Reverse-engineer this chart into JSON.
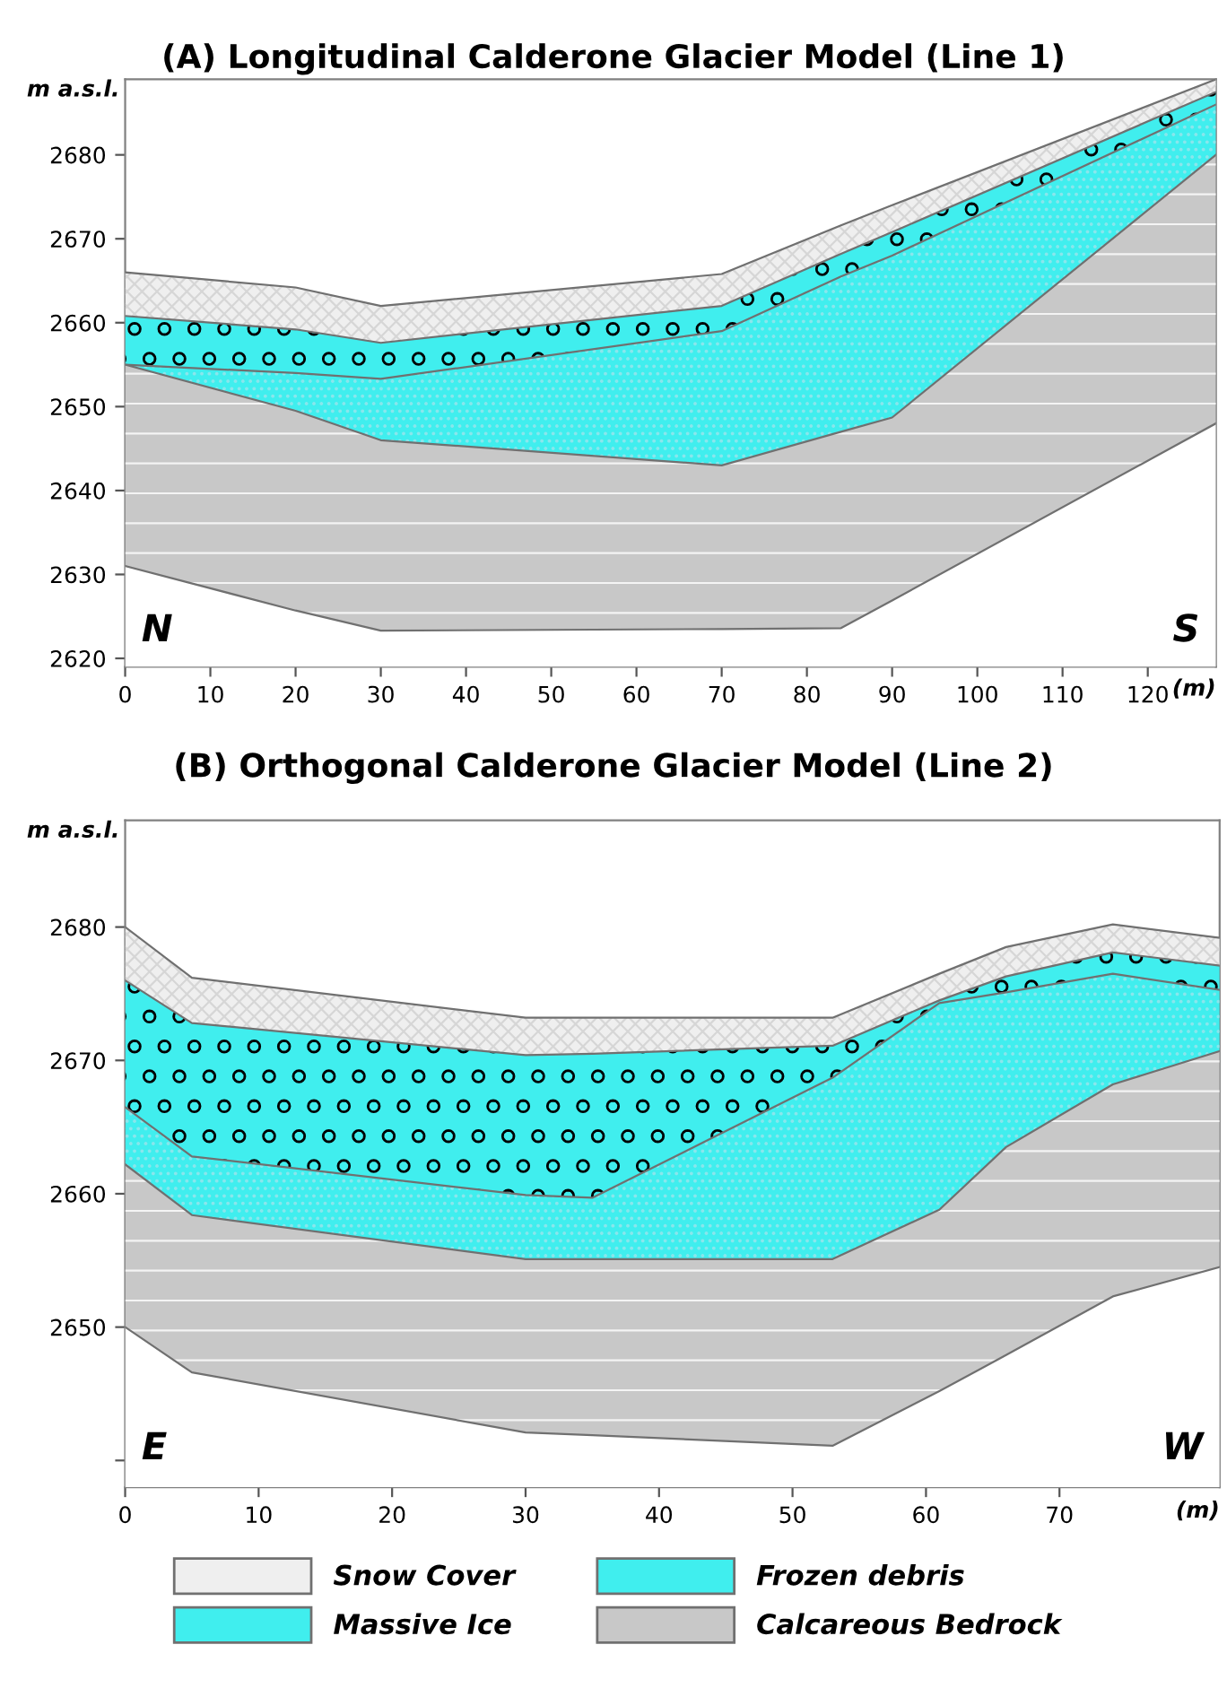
{
  "chart_data": [
    {
      "type": "area",
      "title": "(A) Longitudinal Calderone Glacier Model (Line 1)",
      "xlabel": "(m)",
      "ylabel": "m a.s.l.",
      "x": [
        0,
        20,
        30,
        70,
        84,
        90,
        128
      ],
      "series": [
        {
          "color": "#ffffff",
          "values": [
            2631,
            2625.7,
            2623.3,
            2623.5,
            2623.6,
            2626.9,
            2648
          ]
        },
        {
          "color": "#c8c8c8",
          "values": [
            2655,
            2649.5,
            2646,
            2643,
            2647,
            2648.7,
            2680
          ]
        },
        {
          "color": "#40eeee",
          "values": [
            2655,
            2654,
            2653.3,
            2659,
            2665.5,
            2668,
            2686
          ]
        },
        {
          "color": "#40eeee",
          "values": [
            2660.8,
            2659.2,
            2657.6,
            2662,
            2668.2,
            2670.8,
            2687.5
          ]
        },
        {
          "color": "#efefef",
          "values": [
            2666,
            2664.2,
            2662,
            2665.8,
            2671.6,
            2674,
            2689
          ]
        }
      ],
      "xlim": [
        0,
        128
      ],
      "ylim": [
        2619,
        2689
      ],
      "xticks": [
        0,
        10,
        20,
        30,
        40,
        50,
        60,
        70,
        80,
        90,
        100,
        110,
        120
      ],
      "yticks": [
        2620,
        2630,
        2640,
        2650,
        2660,
        2670,
        2680
      ],
      "annotations": [
        "N",
        "S"
      ]
    },
    {
      "type": "area",
      "title": "(B) Orthogonal Calderone Glacier Model (Line 2)",
      "xlabel": "(m)",
      "ylabel": "m a.s.l.",
      "x": [
        0,
        5,
        30,
        35,
        53,
        61,
        66,
        74,
        82
      ],
      "series": [
        {
          "color": "#ffffff",
          "values": [
            2650,
            2646.6,
            2642.1,
            2641.9,
            2641.1,
            2645.2,
            2647.9,
            2652.3,
            2654.5
          ]
        },
        {
          "name": "Calcareous Bedrock",
          "color": "#c8c8c8",
          "values": [
            2662.2,
            2658.4,
            2655.1,
            2655.1,
            2655.1,
            2658.8,
            2663.5,
            2668.2,
            2670.7
          ]
        },
        {
          "name": "Massive Ice",
          "color": "#40eeee",
          "values": [
            2666.5,
            2662.8,
            2659.9,
            2659.7,
            2668.7,
            2674.3,
            2675.1,
            2676.5,
            2675.3
          ]
        },
        {
          "name": "Frozen debris",
          "color": "#40eeee",
          "values": [
            2676,
            2672.8,
            2670.4,
            2670.5,
            2671.1,
            2674.5,
            2676.3,
            2678.1,
            2677.1
          ]
        },
        {
          "name": "Snow Cover",
          "color": "#efefef",
          "values": [
            2680,
            2676.2,
            2673.2,
            2673.2,
            2673.2,
            2676.5,
            2678.5,
            2680.2,
            2679.2
          ]
        }
      ],
      "xlim": [
        0,
        82
      ],
      "ylim": [
        2638,
        2688
      ],
      "xticks": [
        0,
        10,
        20,
        30,
        40,
        50,
        60,
        70
      ],
      "yticks": [
        {
          "value": 2640,
          "label": null
        },
        2650,
        2660,
        2670,
        2680
      ],
      "annotations": [
        "E",
        "W"
      ],
      "legend": "bottom"
    }
  ]
}
